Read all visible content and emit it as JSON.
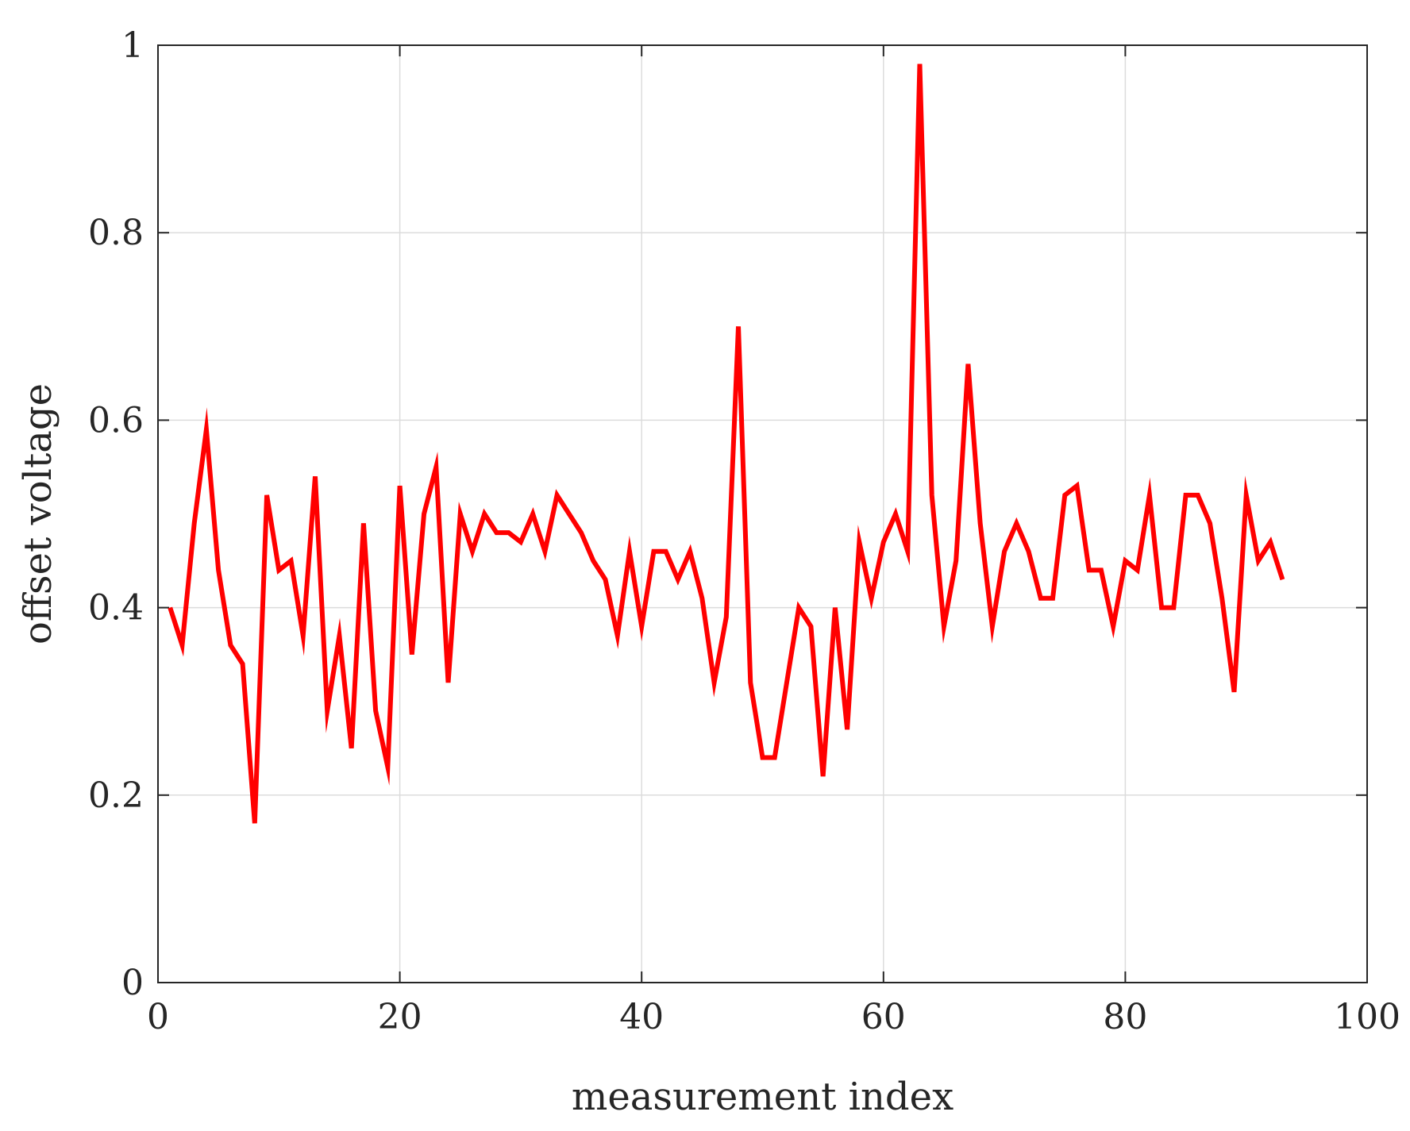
{
  "chart_data": {
    "type": "line",
    "title": "",
    "xlabel": "measurement index",
    "ylabel": "offset voltage",
    "xlim": [
      0,
      100
    ],
    "ylim": [
      0,
      1
    ],
    "xticks": [
      0,
      20,
      40,
      60,
      80,
      100
    ],
    "yticks": [
      0,
      0.2,
      0.4,
      0.6,
      0.8,
      1
    ],
    "xtick_labels": [
      "0",
      "20",
      "40",
      "60",
      "80",
      "100"
    ],
    "ytick_labels": [
      "0",
      "0.2",
      "0.4",
      "0.6",
      "0.8",
      "1"
    ],
    "grid": true,
    "series": [
      {
        "color": "#ff0000",
        "x": [
          1,
          2,
          3,
          4,
          5,
          6,
          7,
          8,
          9,
          10,
          11,
          12,
          13,
          14,
          15,
          16,
          17,
          18,
          19,
          20,
          21,
          22,
          23,
          24,
          25,
          26,
          27,
          28,
          29,
          30,
          31,
          32,
          33,
          34,
          35,
          36,
          37,
          38,
          39,
          40,
          41,
          42,
          43,
          44,
          45,
          46,
          47,
          48,
          49,
          50,
          51,
          52,
          53,
          54,
          55,
          56,
          57,
          58,
          59,
          60,
          61,
          62,
          63,
          64,
          65,
          66,
          67,
          68,
          69,
          70,
          71,
          72,
          73,
          74,
          75,
          76,
          77,
          78,
          79,
          80,
          81,
          82,
          83,
          84,
          85,
          86,
          87,
          88,
          89,
          90,
          91,
          92,
          93
        ],
        "y": [
          0.4,
          0.36,
          0.49,
          0.59,
          0.44,
          0.36,
          0.34,
          0.17,
          0.52,
          0.44,
          0.45,
          0.37,
          0.54,
          0.29,
          0.37,
          0.25,
          0.49,
          0.29,
          0.23,
          0.53,
          0.35,
          0.5,
          0.55,
          0.32,
          0.5,
          0.46,
          0.5,
          0.48,
          0.48,
          0.47,
          0.5,
          0.46,
          0.52,
          0.5,
          0.48,
          0.45,
          0.43,
          0.37,
          0.46,
          0.38,
          0.46,
          0.46,
          0.43,
          0.46,
          0.41,
          0.32,
          0.39,
          0.7,
          0.32,
          0.24,
          0.24,
          0.32,
          0.4,
          0.38,
          0.22,
          0.4,
          0.27,
          0.47,
          0.41,
          0.47,
          0.5,
          0.46,
          0.98,
          0.52,
          0.38,
          0.45,
          0.66,
          0.49,
          0.38,
          0.46,
          0.49,
          0.46,
          0.41,
          0.41,
          0.52,
          0.53,
          0.44,
          0.44,
          0.38,
          0.45,
          0.44,
          0.52,
          0.4,
          0.4,
          0.52,
          0.52,
          0.49,
          0.41,
          0.31,
          0.52,
          0.45,
          0.47,
          0.43
        ]
      }
    ]
  }
}
